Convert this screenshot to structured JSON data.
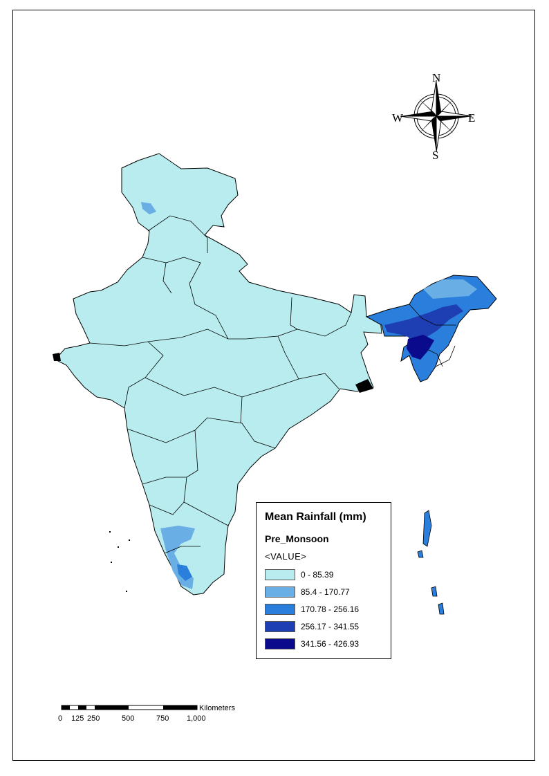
{
  "legend": {
    "title": "Mean Rainfall (mm)",
    "subtitle": "Pre_Monsoon",
    "field": "<VALUE>",
    "classes": [
      {
        "label": "0 - 85.39",
        "color": "#b8ecee"
      },
      {
        "label": "85.4 - 170.77",
        "color": "#6aaee6"
      },
      {
        "label": "170.78 - 256.16",
        "color": "#2a7fdc"
      },
      {
        "label": "256.17 - 341.55",
        "color": "#1e3fb4"
      },
      {
        "label": "341.56 - 426.93",
        "color": "#0a0a8c"
      }
    ]
  },
  "north_arrow": {
    "n": "N",
    "s": "S",
    "e": "E",
    "w": "W"
  },
  "scale_bar": {
    "unit": "Kilometers",
    "ticks": [
      "0",
      "125",
      "250",
      "500",
      "750",
      "1,000"
    ]
  },
  "colors": {
    "base": "#b8ecee",
    "boundary": "#000000"
  }
}
